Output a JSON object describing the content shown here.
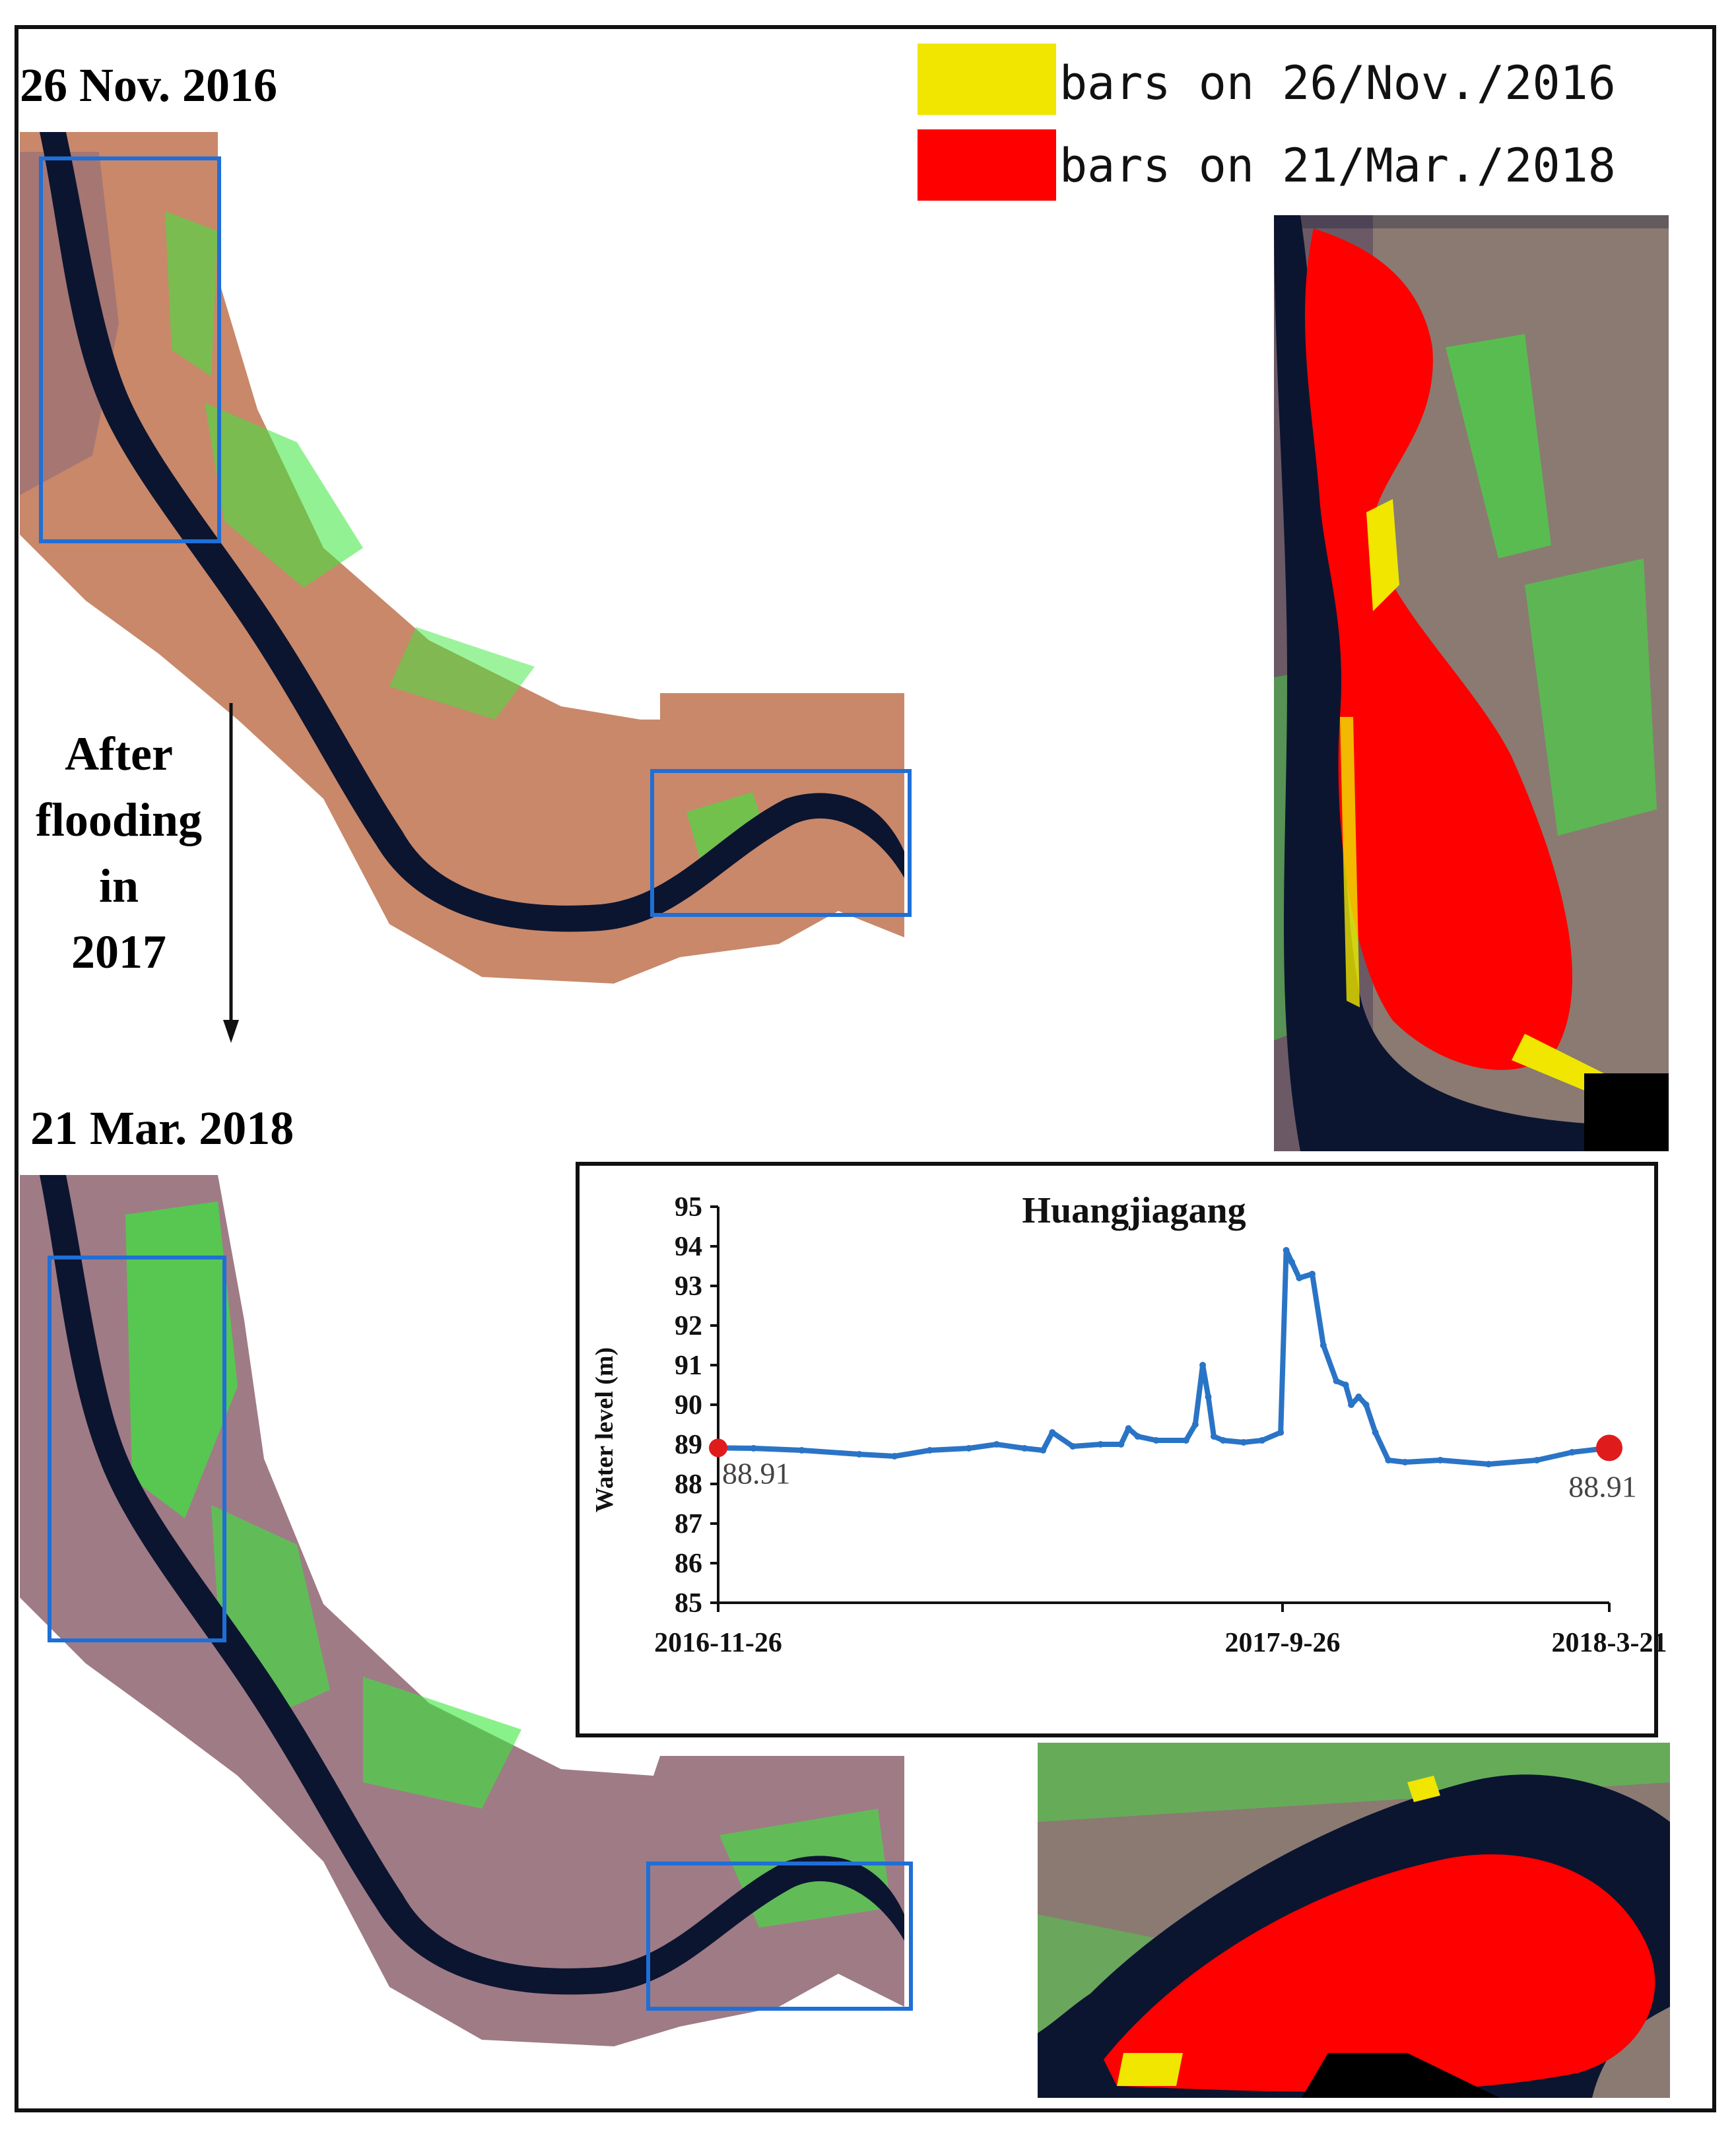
{
  "labels": {
    "top_date": "26 Nov. 2016",
    "bottom_date": "21 Mar. 2018",
    "arrow_text": [
      "After",
      "flooding",
      "in",
      "2017"
    ]
  },
  "legend": [
    {
      "label": "bars on 26/Nov./2016",
      "color": "#f0e600"
    },
    {
      "label": "bars on 21/Mar./2018",
      "color": "#ff0000"
    }
  ],
  "colors": {
    "water": "#0b1530",
    "land": "#c9886a",
    "vegetation": "#39e83a",
    "box_outline": "#1f6fd6",
    "series": "#2a74c6",
    "endpoint_marker": "#e01b1b"
  },
  "chart_data": {
    "type": "line",
    "title": "Huangjiagang",
    "xlabel": "",
    "ylabel": "Water level (m)",
    "ylim": [
      85,
      95
    ],
    "yticks": [
      85,
      86,
      87,
      88,
      89,
      90,
      91,
      92,
      93,
      94,
      95
    ],
    "xticks": [
      "2016-11-26",
      "2017-9-26",
      "2018-3-21"
    ],
    "xlim": [
      "2016-11-26",
      "2018-3-21"
    ],
    "series": [
      {
        "x": [
          "2016-11-26",
          "2016-12-15",
          "2017-01-10",
          "2017-02-10",
          "2017-03-01",
          "2017-03-20",
          "2017-04-10",
          "2017-04-25",
          "2017-05-10",
          "2017-05-20",
          "2017-05-25",
          "2017-06-05",
          "2017-06-20",
          "2017-07-01",
          "2017-07-05",
          "2017-07-10",
          "2017-07-20",
          "2017-08-05",
          "2017-08-10",
          "2017-08-14",
          "2017-08-17",
          "2017-08-20",
          "2017-08-25",
          "2017-09-05",
          "2017-09-15",
          "2017-09-25",
          "2017-09-28",
          "2017-10-01",
          "2017-10-05",
          "2017-10-12",
          "2017-10-18",
          "2017-10-25",
          "2017-10-30",
          "2017-11-02",
          "2017-11-06",
          "2017-11-10",
          "2017-11-15",
          "2017-11-22",
          "2017-12-01",
          "2017-12-20",
          "2018-01-15",
          "2018-02-10",
          "2018-03-01",
          "2018-03-21"
        ],
        "values": [
          88.91,
          88.9,
          88.85,
          88.75,
          88.7,
          88.85,
          88.9,
          89.0,
          88.9,
          88.85,
          89.3,
          88.95,
          89.0,
          89.0,
          89.4,
          89.2,
          89.1,
          89.1,
          89.5,
          91.0,
          90.2,
          89.2,
          89.1,
          89.05,
          89.1,
          89.3,
          93.9,
          93.6,
          93.2,
          93.3,
          91.5,
          90.6,
          90.5,
          90.0,
          90.2,
          90.0,
          89.3,
          88.6,
          88.55,
          88.6,
          88.5,
          88.6,
          88.8,
          88.91
        ]
      }
    ],
    "annotations": [
      {
        "x": "2016-11-26",
        "y": 88.91,
        "text": "88.91"
      },
      {
        "x": "2018-3-21",
        "y": 88.91,
        "text": "88.91"
      }
    ]
  }
}
